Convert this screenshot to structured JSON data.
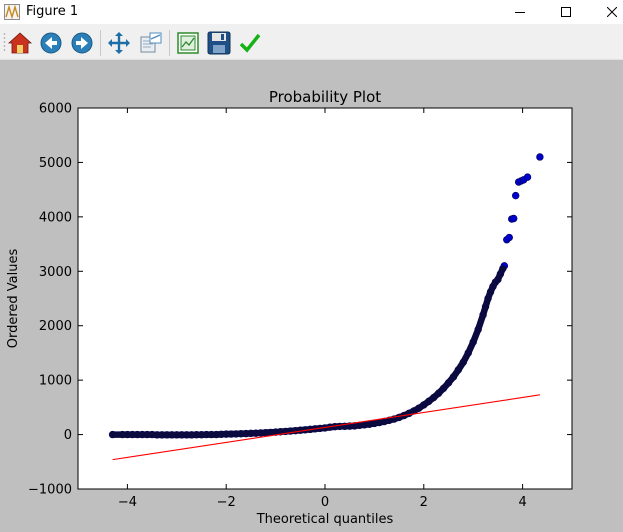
{
  "window": {
    "title": "Figure 1",
    "controls": [
      "minimize",
      "maximize",
      "close"
    ]
  },
  "toolbar": {
    "buttons": [
      {
        "name": "home-icon"
      },
      {
        "name": "back-icon"
      },
      {
        "name": "forward-icon"
      },
      {
        "name": "pan-icon"
      },
      {
        "name": "zoom-icon"
      },
      {
        "name": "subplots-icon"
      },
      {
        "name": "save-icon"
      },
      {
        "name": "edit-parameters-icon"
      }
    ]
  },
  "chart_data": {
    "type": "scatter",
    "title": "Probability Plot",
    "xlabel": "Theoretical quantiles",
    "ylabel": "Ordered Values",
    "xlim": [
      -5,
      5
    ],
    "ylim": [
      -1000,
      6000
    ],
    "xticks": [
      -4,
      -2,
      0,
      2,
      4
    ],
    "yticks": [
      -1000,
      0,
      1000,
      2000,
      3000,
      4000,
      5000,
      6000
    ],
    "xtick_labels": [
      "−4",
      "−2",
      "0",
      "2",
      "4"
    ],
    "ytick_labels": [
      "−1000",
      "0",
      "1000",
      "2000",
      "3000",
      "4000",
      "5000",
      "6000"
    ],
    "grid": false,
    "legend": false,
    "series": [
      {
        "marker": "circle",
        "color": "#0000cc",
        "points": [
          [
            -4.3,
            0
          ],
          [
            -4.1,
            0
          ],
          [
            -4.0,
            0
          ],
          [
            -3.9,
            0
          ],
          [
            -3.8,
            0
          ],
          [
            -3.7,
            0
          ],
          [
            -3.6,
            0
          ],
          [
            -3.5,
            0
          ],
          [
            -3.4,
            -5
          ],
          [
            -3.3,
            -5
          ],
          [
            -3.2,
            -5
          ],
          [
            -3.1,
            -5
          ],
          [
            -3.0,
            -5
          ],
          [
            -2.9,
            -5
          ],
          [
            -2.8,
            -5
          ],
          [
            -2.7,
            -5
          ],
          [
            -2.6,
            -3
          ],
          [
            -2.5,
            -3
          ],
          [
            -2.4,
            0
          ],
          [
            -2.3,
            0
          ],
          [
            -2.2,
            0
          ],
          [
            -2.1,
            5
          ],
          [
            -2.0,
            8
          ],
          [
            -1.9,
            10
          ],
          [
            -1.8,
            12
          ],
          [
            -1.7,
            15
          ],
          [
            -1.6,
            18
          ],
          [
            -1.5,
            22
          ],
          [
            -1.4,
            25
          ],
          [
            -1.3,
            30
          ],
          [
            -1.2,
            35
          ],
          [
            -1.1,
            40
          ],
          [
            -1.0,
            45
          ],
          [
            -0.9,
            52
          ],
          [
            -0.8,
            58
          ],
          [
            -0.7,
            65
          ],
          [
            -0.6,
            72
          ],
          [
            -0.5,
            80
          ],
          [
            -0.4,
            88
          ],
          [
            -0.3,
            96
          ],
          [
            -0.2,
            105
          ],
          [
            -0.1,
            113
          ],
          [
            0.0,
            122
          ],
          [
            0.1,
            135
          ],
          [
            0.2,
            145
          ],
          [
            0.3,
            150
          ],
          [
            0.4,
            152
          ],
          [
            0.5,
            155
          ],
          [
            0.6,
            160
          ],
          [
            0.7,
            170
          ],
          [
            0.8,
            180
          ],
          [
            0.9,
            190
          ],
          [
            1.0,
            205
          ],
          [
            1.1,
            222
          ],
          [
            1.2,
            240
          ],
          [
            1.3,
            262
          ],
          [
            1.4,
            285
          ],
          [
            1.5,
            315
          ],
          [
            1.6,
            350
          ],
          [
            1.7,
            390
          ],
          [
            1.8,
            435
          ],
          [
            1.9,
            485
          ],
          [
            2.0,
            545
          ],
          [
            2.1,
            610
          ],
          [
            2.2,
            680
          ],
          [
            2.3,
            760
          ],
          [
            2.4,
            850
          ],
          [
            2.5,
            950
          ],
          [
            2.6,
            1060
          ],
          [
            2.7,
            1190
          ],
          [
            2.8,
            1330
          ],
          [
            2.9,
            1500
          ],
          [
            3.0,
            1700
          ],
          [
            3.1,
            1930
          ],
          [
            3.2,
            2200
          ],
          [
            3.25,
            2350
          ],
          [
            3.3,
            2500
          ],
          [
            3.35,
            2620
          ],
          [
            3.4,
            2720
          ],
          [
            3.45,
            2800
          ],
          [
            3.5,
            2850
          ],
          [
            3.55,
            2950
          ],
          [
            3.6,
            3050
          ],
          [
            3.63,
            3100
          ],
          [
            3.68,
            3580
          ],
          [
            3.73,
            3620
          ],
          [
            3.78,
            3960
          ],
          [
            3.82,
            3970
          ],
          [
            3.86,
            4390
          ],
          [
            3.92,
            4640
          ],
          [
            3.97,
            4660
          ],
          [
            4.02,
            4680
          ],
          [
            4.1,
            4730
          ],
          [
            4.35,
            5100
          ]
        ]
      },
      {
        "marker": "line",
        "color": "#ff0000",
        "points": [
          [
            -4.3,
            -460
          ],
          [
            4.35,
            730
          ]
        ]
      }
    ]
  }
}
